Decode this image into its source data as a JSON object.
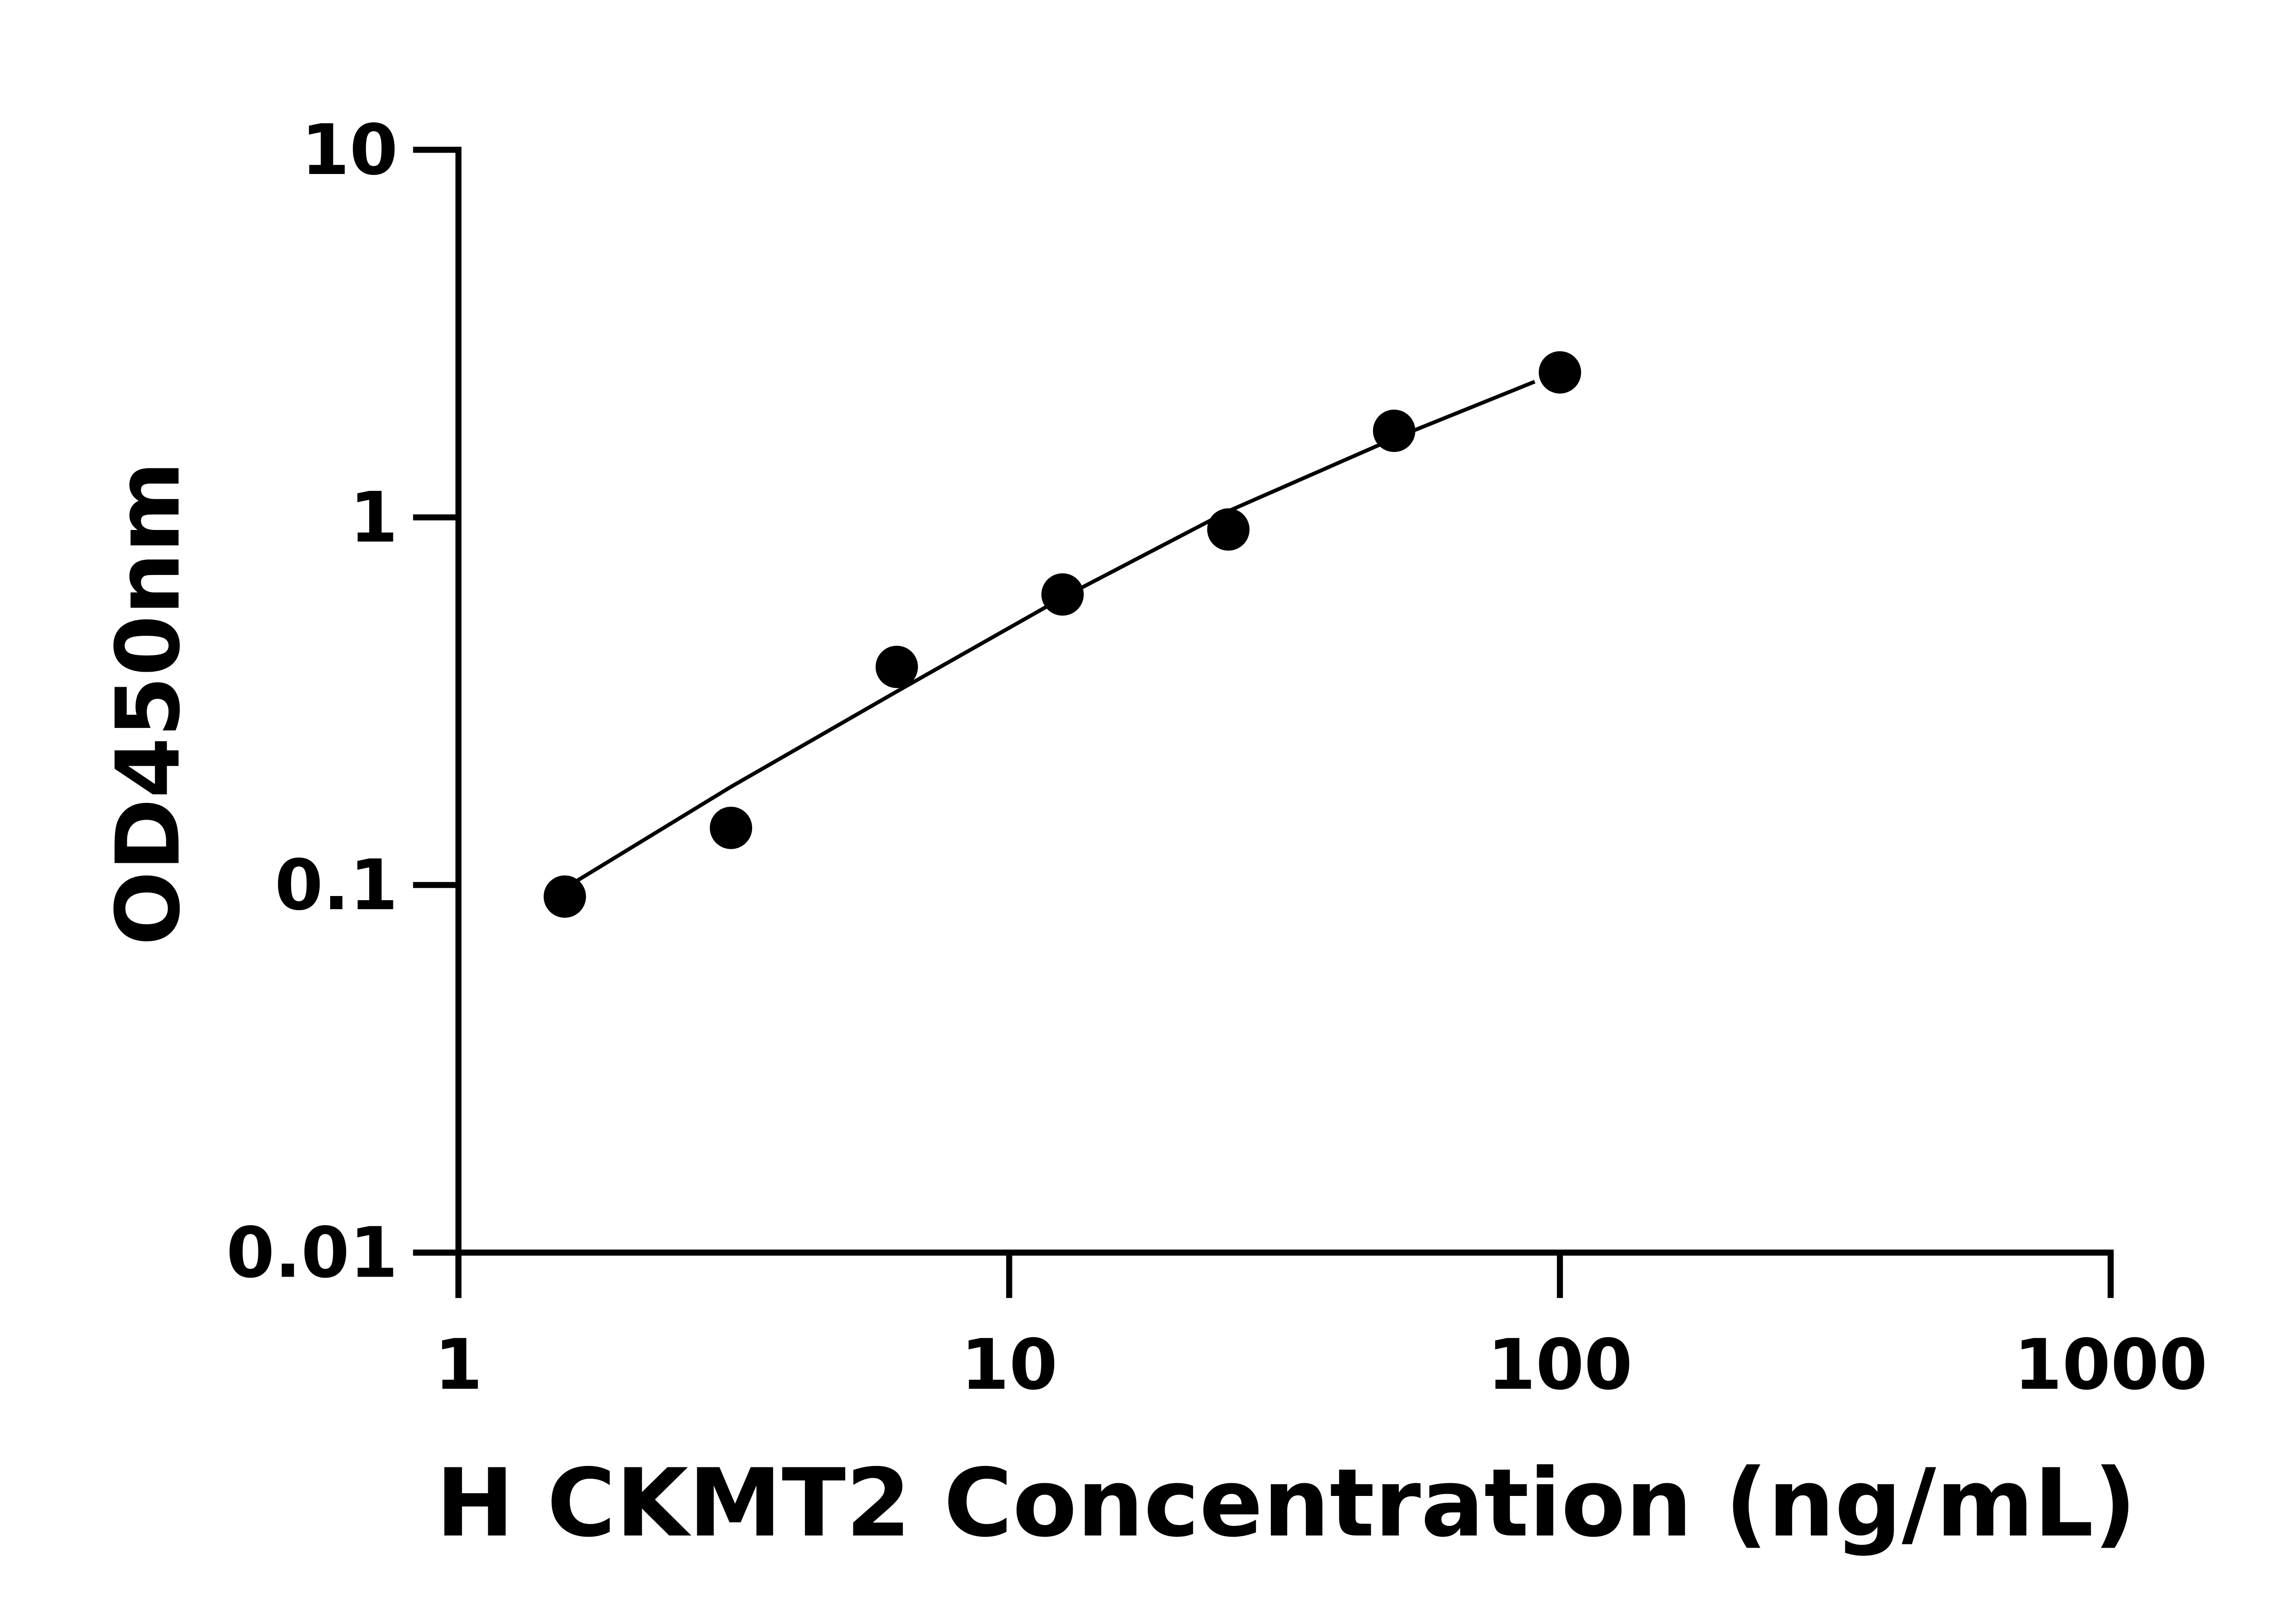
{
  "chart_data": {
    "type": "scatter",
    "x_label": "H CKMT2 Concentration (ng/mL)",
    "y_label": "OD450nm",
    "x_log": true,
    "y_log": true,
    "xlim": [
      1,
      1000
    ],
    "ylim": [
      0.01,
      10
    ],
    "xticks": [
      1,
      10,
      100,
      1000
    ],
    "yticks": [
      0.01,
      0.1,
      1,
      10
    ],
    "color": "#000000",
    "x": [
      1.56,
      3.125,
      6.25,
      12.5,
      25,
      50,
      100
    ],
    "values": [
      0.093,
      0.143,
      0.392,
      0.617,
      0.927,
      1.72,
      2.48
    ],
    "fit": {
      "x": [
        1.56,
        3.125,
        6.25,
        12.5,
        25,
        50,
        90
      ],
      "values": [
        0.098,
        0.185,
        0.336,
        0.605,
        1.04,
        1.64,
        2.34
      ]
    }
  }
}
